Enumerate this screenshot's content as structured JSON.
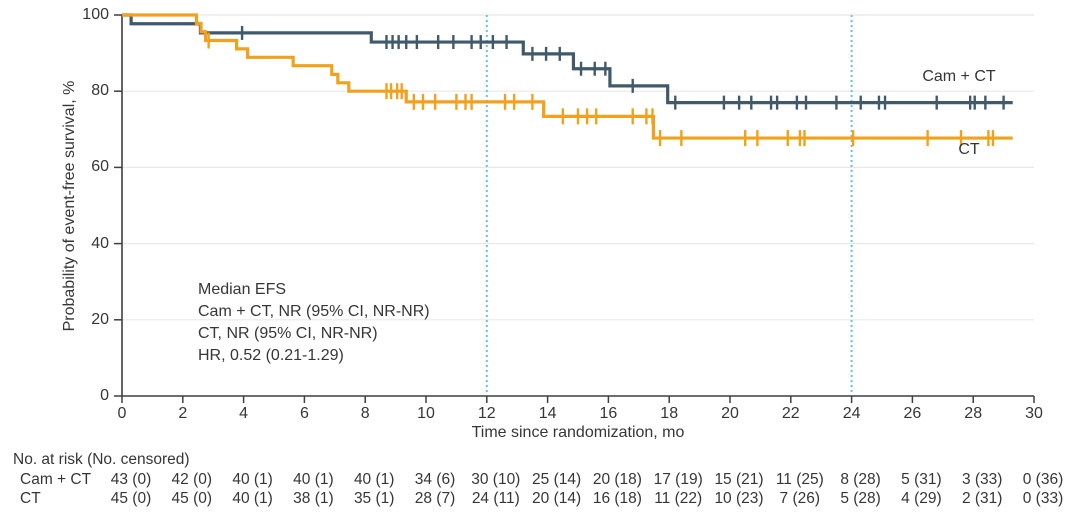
{
  "chart_data": {
    "type": "line",
    "subtype": "kaplan_meier_step",
    "title": "",
    "xlabel": "Time since randomization, mo",
    "ylabel": "Probability of event-free survival, %",
    "xlim": [
      0,
      30
    ],
    "ylim": [
      0,
      100
    ],
    "xticks": [
      0,
      2,
      4,
      6,
      8,
      10,
      12,
      14,
      16,
      18,
      20,
      22,
      24,
      26,
      28,
      30
    ],
    "yticks": [
      0,
      20,
      40,
      60,
      80,
      100
    ],
    "grid": "horizontal",
    "legend_position": "inline-right",
    "reference_lines_x": [
      12,
      24
    ],
    "annotation_lines": [
      "Median EFS",
      "Cam + CT, NR (95% CI, NR-NR)",
      "CT, NR (95% CI, NR-NR)",
      "HR, 0.52 (0.21-1.29)"
    ],
    "series": [
      {
        "name": "Cam + CT",
        "color": "#415a6b",
        "steps": [
          [
            0,
            100
          ],
          [
            0.3,
            97.7
          ],
          [
            2.58,
            95.3
          ],
          [
            8.2,
            92.9
          ],
          [
            13.2,
            89.8
          ],
          [
            14.85,
            85.9
          ],
          [
            16.05,
            81.4
          ],
          [
            17.95,
            77.0
          ],
          [
            29.3,
            77.0
          ]
        ],
        "censor_times": [
          3.95,
          8.7,
          8.9,
          9.1,
          9.35,
          9.7,
          10.4,
          10.9,
          11.5,
          11.8,
          12.2,
          12.65,
          13.5,
          13.95,
          14.4,
          15.1,
          15.55,
          15.9,
          16.8,
          18.2,
          19.8,
          20.3,
          20.7,
          21.35,
          21.55,
          22.2,
          22.5,
          23.5,
          24.3,
          24.9,
          25.1,
          26.8,
          27.9,
          28.05,
          28.4,
          29.0
        ]
      },
      {
        "name": "CT",
        "color": "#f2a11c",
        "steps": [
          [
            0,
            100
          ],
          [
            2.45,
            97.8
          ],
          [
            2.6,
            95.6
          ],
          [
            2.75,
            93.3
          ],
          [
            3.77,
            91.1
          ],
          [
            4.13,
            88.9
          ],
          [
            5.63,
            86.7
          ],
          [
            6.9,
            84.4
          ],
          [
            7.1,
            82.2
          ],
          [
            7.46,
            80.0
          ],
          [
            9.35,
            77.2
          ],
          [
            13.87,
            73.4
          ],
          [
            17.48,
            67.7
          ],
          [
            29.3,
            67.7
          ]
        ],
        "censor_times": [
          2.85,
          8.7,
          8.85,
          9.05,
          9.2,
          9.6,
          9.9,
          10.3,
          11.0,
          11.3,
          11.5,
          12.6,
          12.9,
          13.5,
          14.5,
          15.0,
          15.3,
          15.6,
          16.8,
          17.25,
          17.45,
          17.7,
          18.4,
          20.5,
          20.9,
          21.9,
          22.3,
          22.45,
          24.05,
          26.5,
          27.6,
          28.5,
          28.65
        ]
      }
    ],
    "colors": {
      "cam_ct_curve": "#415a6b",
      "ct_curve": "#f2a11c",
      "reference_line": "#5ac8e8",
      "grid": "#e8e8e8",
      "axis": "#3f3f3f",
      "text": "#363636"
    }
  },
  "risk_table": {
    "header": "No. at risk (No. censored)",
    "times": [
      0,
      2,
      4,
      6,
      8,
      10,
      12,
      14,
      16,
      18,
      20,
      22,
      24,
      26,
      28,
      30
    ],
    "rows": [
      {
        "label": "Cam + CT",
        "values": [
          "43 (0)",
          "42 (0)",
          "40 (1)",
          "40 (1)",
          "40 (1)",
          "34 (6)",
          "30 (10)",
          "25 (14)",
          "20 (18)",
          "17 (19)",
          "15 (21)",
          "11 (25)",
          "8 (28)",
          "5 (31)",
          "3 (33)",
          "0 (36)"
        ]
      },
      {
        "label": "CT",
        "values": [
          "45 (0)",
          "45 (0)",
          "40 (1)",
          "38 (1)",
          "35 (1)",
          "28 (7)",
          "24 (11)",
          "20 (14)",
          "16 (18)",
          "11 (22)",
          "10 (23)",
          "7 (26)",
          "5 (28)",
          "4 (29)",
          "2 (31)",
          "0 (33)"
        ]
      }
    ]
  }
}
